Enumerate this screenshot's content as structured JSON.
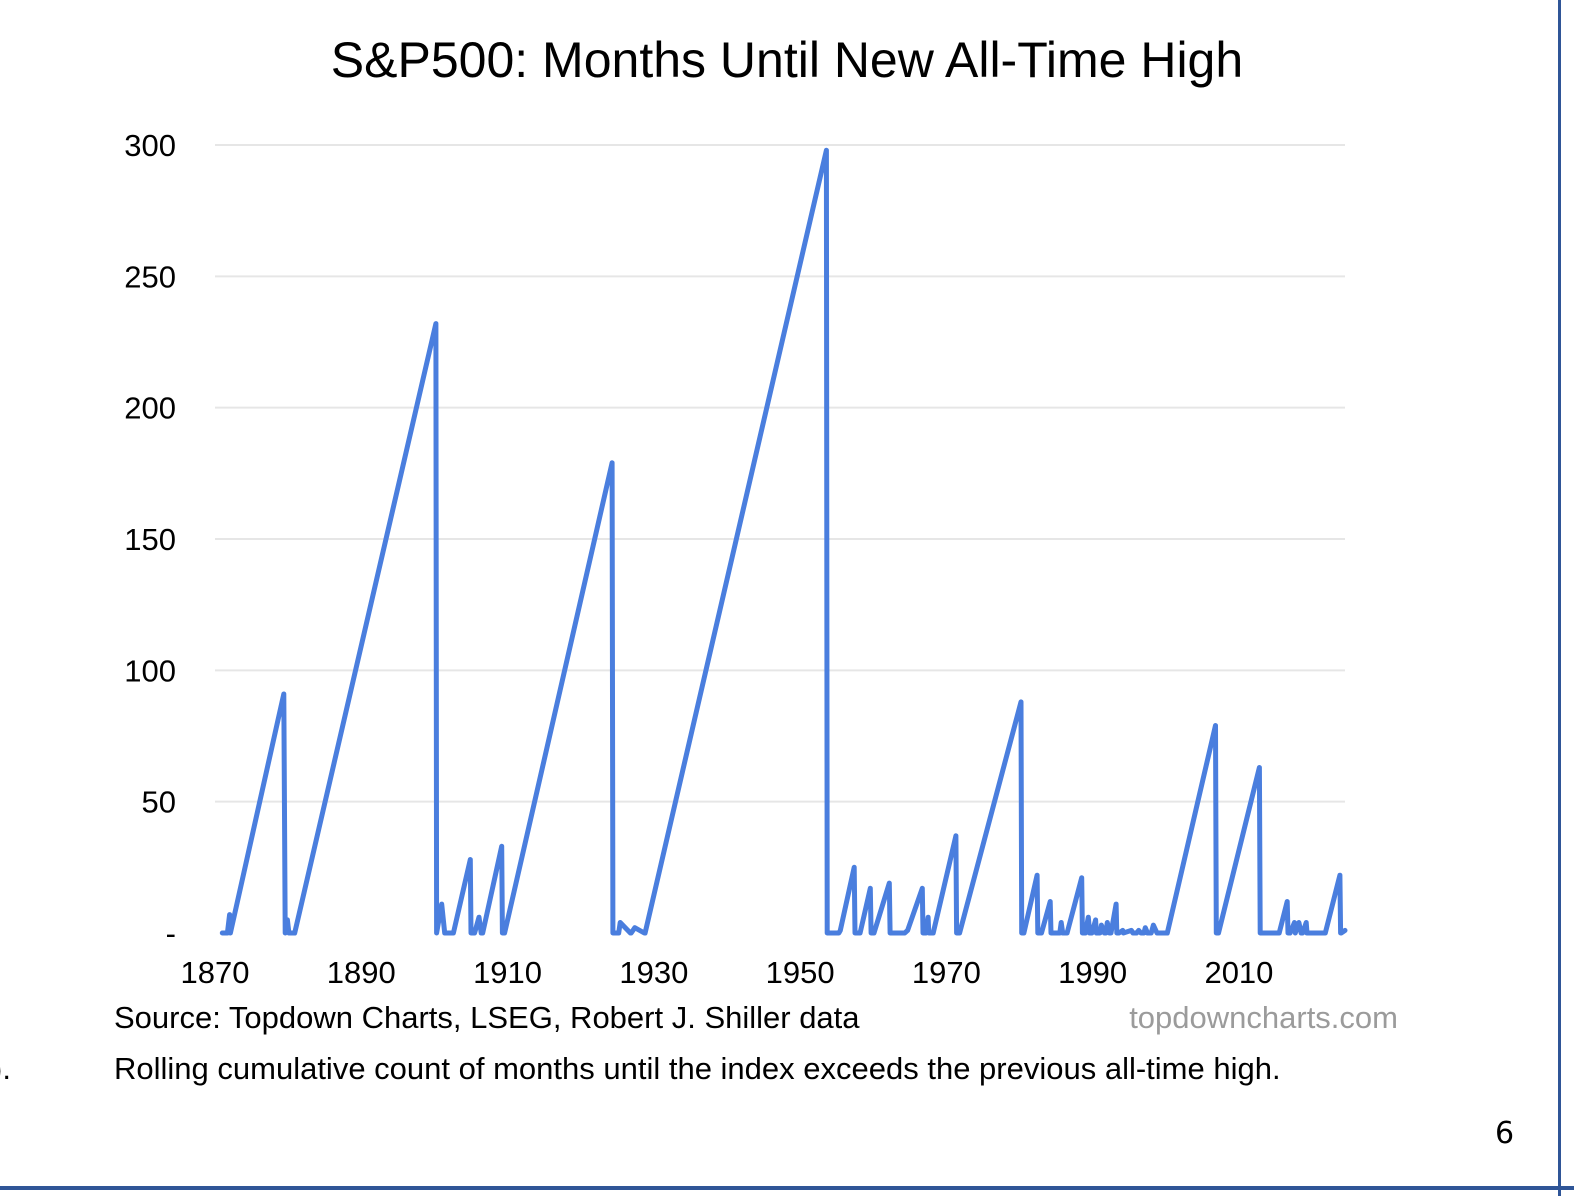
{
  "chart_data": {
    "type": "line",
    "title": "S&P500: Months Until New All-Time High",
    "xlabel": "",
    "ylabel": "",
    "xlim": [
      1870,
      2024.5
    ],
    "ylim": [
      0,
      300
    ],
    "y_ticks": [
      0,
      50,
      100,
      150,
      200,
      250,
      300
    ],
    "y_tick_labels": [
      "-",
      "50",
      "100",
      "150",
      "200",
      "250",
      "300"
    ],
    "x_ticks": [
      1870,
      1890,
      1910,
      1930,
      1950,
      1970,
      1990,
      2010
    ],
    "x_tick_labels": [
      "1870",
      "1890",
      "1910",
      "1930",
      "1950",
      "1970",
      "1990",
      "2010"
    ],
    "grid": true,
    "legend": "none",
    "line_color": "#4a7ede",
    "series": [
      {
        "x": [
          1871,
          1871.7,
          1872,
          1872.1,
          1879.4,
          1879.6,
          1879.9,
          1880.1,
          1880.5,
          1880.8,
          1880.9,
          1900.2,
          1900.3,
          1901.0,
          1901.4,
          1901.5,
          1902.3,
          1902.6,
          1904.9,
          1905.0,
          1905.5,
          1906.1,
          1906.4,
          1906.6,
          1909.2,
          1909.3,
          1909.6,
          1924.3,
          1924.4,
          1925.0,
          1925.2,
          1925.4,
          1926.8,
          1926.9,
          1927.4,
          1928.7,
          1928.8,
          1953.6,
          1953.7,
          1955.0,
          1955.3,
          1955.5,
          1957.4,
          1957.5,
          1958.2,
          1959.6,
          1959.7,
          1960.1,
          1962.2,
          1962.3,
          1962.5,
          1964.2,
          1964.3,
          1964.7,
          1966.7,
          1966.8,
          1967.2,
          1967.5,
          1967.6,
          1968.2,
          1971.3,
          1971.4,
          1971.8,
          1980.2,
          1980.3,
          1980.6,
          1982.4,
          1982.5,
          1983.0,
          1984.2,
          1984.3,
          1984.7,
          1985.5,
          1985.7,
          1985.9,
          1986.3,
          1986.5,
          1988.5,
          1988.6,
          1989.0,
          1989.4,
          1989.6,
          1989.9,
          1990.4,
          1990.5,
          1991.0,
          1991.2,
          1991.6,
          1991.8,
          1992.0,
          1992.3,
          1992.5,
          1993.2,
          1993.3,
          1993.6,
          1994.1,
          1994.2,
          1995.3,
          1995.5,
          1996.0,
          1996.3,
          1996.6,
          1997.0,
          1997.2,
          1997.5,
          1998.0,
          1998.3,
          1998.8,
          1999.3,
          2000.2,
          2006.8,
          2006.9,
          2007.2,
          2012.8,
          2012.9,
          2013.2,
          2015.3,
          2015.5,
          2016.6,
          2016.7,
          2017.0,
          2017.6,
          2017.7,
          2018.2,
          2018.5,
          2018.7,
          2019.2,
          2019.3,
          2019.5,
          2020.3,
          2020.5,
          2020.8,
          2021.0,
          2021.2,
          2021.8,
          2023.8,
          2023.9,
          2024.0,
          2024.5
        ],
        "y": [
          0,
          0,
          7,
          0,
          91,
          0,
          5,
          0,
          0,
          0,
          0,
          232,
          0,
          11,
          0,
          0,
          0,
          0,
          28,
          0,
          0,
          6,
          0,
          0,
          33,
          0,
          0,
          179,
          0,
          0,
          0,
          4,
          0,
          0,
          2,
          0,
          0,
          298,
          0,
          0,
          0,
          1,
          25,
          0,
          0,
          17,
          0,
          0,
          19,
          0,
          0,
          0,
          0,
          1,
          17,
          0,
          0,
          6,
          0,
          0,
          37,
          0,
          0,
          88,
          0,
          0,
          22,
          0,
          0,
          12,
          0,
          0,
          0,
          4,
          0,
          0,
          0,
          21,
          0,
          0,
          6,
          0,
          0,
          5,
          0,
          0,
          3,
          0,
          0,
          4,
          0,
          0,
          11,
          0,
          0,
          1,
          0,
          1,
          0,
          0,
          1,
          0,
          0,
          2,
          0,
          0,
          3,
          0,
          0,
          0,
          79,
          0,
          0,
          63,
          0,
          0,
          0,
          0,
          12,
          0,
          0,
          4,
          0,
          4,
          0,
          0,
          4,
          0,
          0,
          0,
          0,
          0,
          0,
          0,
          0,
          22,
          0,
          0,
          1
        ]
      }
    ]
  },
  "source_text": "Source: Topdown Charts, LSEG, Robert J. Shiller data",
  "watermark_text": "topdowncharts.com",
  "footnote_marker": ").",
  "footnote_text": "Rolling cumulative count of months until the index exceeds the previous all-time high.",
  "page_number": "6"
}
